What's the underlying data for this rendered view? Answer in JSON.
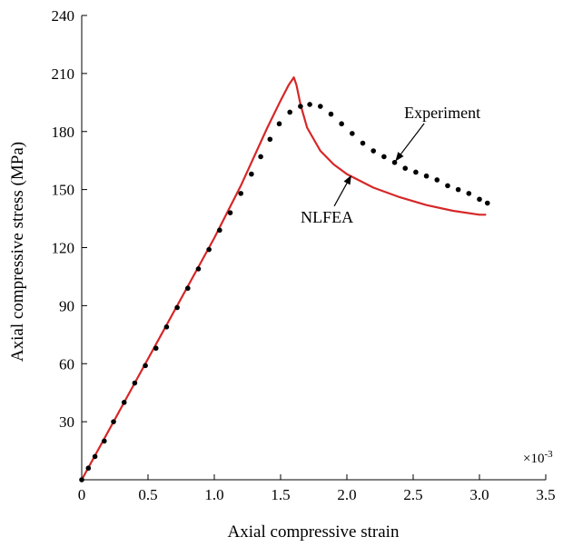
{
  "chart_data": {
    "type": "line",
    "xlabel": "Axial compressive strain",
    "ylabel": "Axial compressive stress (MPa)",
    "x_multiplier": "×10",
    "x_multiplier_exp": "-3",
    "xlim": [
      0,
      3.5
    ],
    "ylim": [
      0,
      240
    ],
    "xticks": [
      0,
      0.5,
      1.0,
      1.5,
      2.0,
      2.5,
      3.0,
      3.5
    ],
    "xtick_labels": [
      "0",
      "0.5",
      "1.0",
      "1.5",
      "2.0",
      "2.5",
      "3.0",
      "3.5"
    ],
    "yticks": [
      30,
      60,
      90,
      120,
      150,
      180,
      210,
      240
    ],
    "ytick_labels": [
      "30",
      "60",
      "90",
      "120",
      "150",
      "180",
      "210",
      "240"
    ],
    "grid": false,
    "legend": "none",
    "series": [
      {
        "name": "NLFEA",
        "style": "line",
        "color": "#d62728",
        "x": [
          0,
          0.2,
          0.4,
          0.6,
          0.8,
          1.0,
          1.2,
          1.4,
          1.5,
          1.56,
          1.6,
          1.62,
          1.65,
          1.7,
          1.8,
          1.9,
          2.0,
          2.2,
          2.4,
          2.6,
          2.8,
          3.0,
          3.05
        ],
        "y": [
          0,
          25,
          50,
          75,
          100,
          125,
          152,
          182,
          196,
          204,
          208,
          204,
          194,
          182,
          170,
          163,
          158,
          151,
          146,
          142,
          139,
          137,
          137
        ]
      },
      {
        "name": "Experiment",
        "style": "dots",
        "color": "#000000",
        "x": [
          0,
          0.05,
          0.1,
          0.17,
          0.24,
          0.32,
          0.4,
          0.48,
          0.56,
          0.64,
          0.72,
          0.8,
          0.88,
          0.96,
          1.04,
          1.12,
          1.2,
          1.28,
          1.35,
          1.42,
          1.49,
          1.57,
          1.65,
          1.72,
          1.8,
          1.88,
          1.96,
          2.04,
          2.12,
          2.2,
          2.28,
          2.36,
          2.44,
          2.52,
          2.6,
          2.68,
          2.76,
          2.84,
          2.92,
          3.0,
          3.06
        ],
        "y": [
          0,
          6,
          12,
          20,
          30,
          40,
          50,
          59,
          68,
          79,
          89,
          99,
          109,
          119,
          129,
          138,
          148,
          158,
          167,
          176,
          184,
          190,
          193,
          194,
          193,
          189,
          184,
          179,
          174,
          170,
          167,
          164,
          161,
          159,
          157,
          155,
          152,
          150,
          148,
          145,
          143
        ]
      }
    ],
    "annotations": [
      {
        "text": "Experiment",
        "x": 2.72,
        "y": 187,
        "arrow_to": [
          2.37,
          165
        ]
      },
      {
        "text": "NLFEA",
        "x": 1.85,
        "y": 133,
        "arrow_to": [
          2.03,
          157
        ]
      }
    ]
  }
}
